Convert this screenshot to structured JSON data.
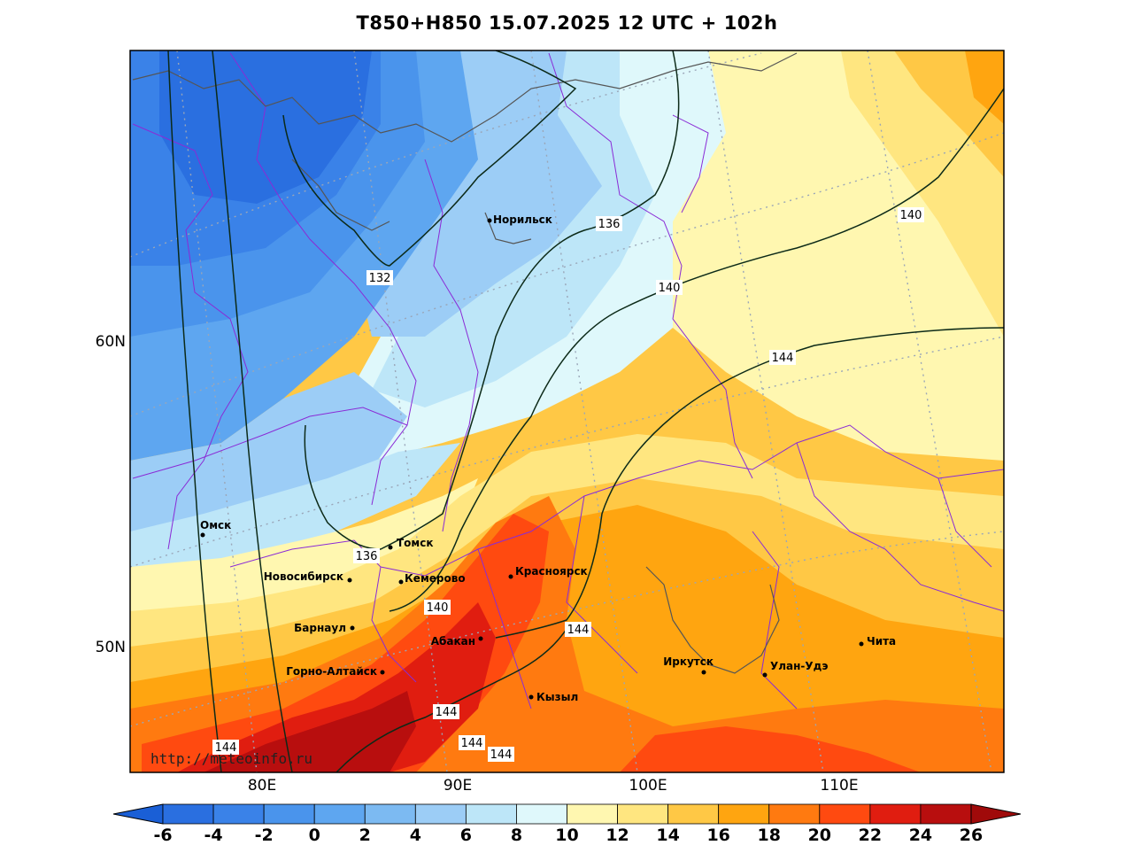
{
  "title": "T850+H850 15.07.2025 12 UTC + 102h",
  "watermark": "http://meteoinfo.ru",
  "axes": {
    "lat_labels": [
      "60N",
      "50N"
    ],
    "lon_labels": [
      "80E",
      "90E",
      "100E",
      "110E"
    ]
  },
  "cities": [
    {
      "name": "Норильск"
    },
    {
      "name": "Омск"
    },
    {
      "name": "Томск"
    },
    {
      "name": "Новосибирск"
    },
    {
      "name": "Кемерово"
    },
    {
      "name": "Красноярск"
    },
    {
      "name": "Барнаул"
    },
    {
      "name": "Абакан"
    },
    {
      "name": "Горно-Алтайск"
    },
    {
      "name": "Кызыл"
    },
    {
      "name": "Иркутск"
    },
    {
      "name": "Улан-Удэ"
    },
    {
      "name": "Чита"
    }
  ],
  "contour_labels": [
    "132",
    "136",
    "136",
    "140",
    "140",
    "140",
    "144",
    "144",
    "144",
    "144",
    "144",
    "144"
  ],
  "colorbar": {
    "ticks": [
      "-6",
      "-4",
      "-2",
      "0",
      "2",
      "4",
      "6",
      "8",
      "10",
      "12",
      "14",
      "16",
      "18",
      "20",
      "22",
      "24",
      "26"
    ],
    "colors": {
      "under": "#1a5fd6",
      "bins": [
        "#2a6fe0",
        "#3a82e8",
        "#4a94ec",
        "#5ea6f0",
        "#7cbaf2",
        "#9ccdf6",
        "#bde6f8",
        "#dff8fb",
        "#fff7b0",
        "#ffe680",
        "#ffc845",
        "#ffa510",
        "#ff7a10",
        "#ff4a10",
        "#e01d10",
        "#b80e0e"
      ],
      "over": "#a00a0a"
    }
  }
}
